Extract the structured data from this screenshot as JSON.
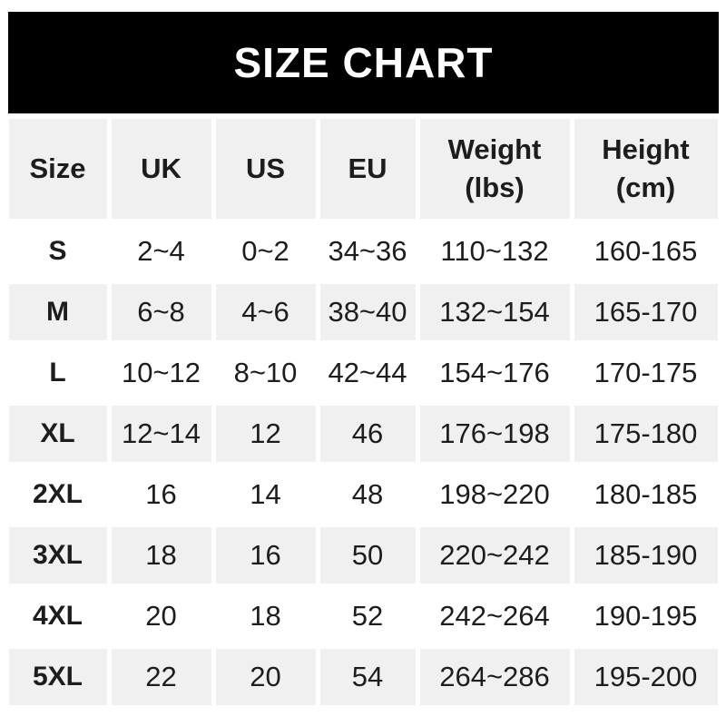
{
  "banner": {
    "title": "SIZE CHART",
    "bg_color": "#000000",
    "text_color": "#ffffff"
  },
  "colors": {
    "row_shaded": "#f0f0f0",
    "row_plain": "#ffffff",
    "text": "#1d1d1d"
  },
  "chart_data": {
    "type": "table",
    "title": "SIZE CHART",
    "columns": [
      "Size",
      "UK",
      "US",
      "EU",
      "Weight (lbs)",
      "Height (cm)"
    ],
    "rows": [
      [
        "S",
        "2~4",
        "0~2",
        "34~36",
        "110~132",
        "160-165"
      ],
      [
        "M",
        "6~8",
        "4~6",
        "38~40",
        "132~154",
        "165-170"
      ],
      [
        "L",
        "10~12",
        "8~10",
        "42~44",
        "154~176",
        "170-175"
      ],
      [
        "XL",
        "12~14",
        "12",
        "46",
        "176~198",
        "175-180"
      ],
      [
        "2XL",
        "16",
        "14",
        "48",
        "198~220",
        "180-185"
      ],
      [
        "3XL",
        "18",
        "16",
        "50",
        "220~242",
        "185-190"
      ],
      [
        "4XL",
        "20",
        "18",
        "52",
        "242~264",
        "190-195"
      ],
      [
        "5XL",
        "22",
        "20",
        "54",
        "264~286",
        "195-200"
      ]
    ]
  }
}
